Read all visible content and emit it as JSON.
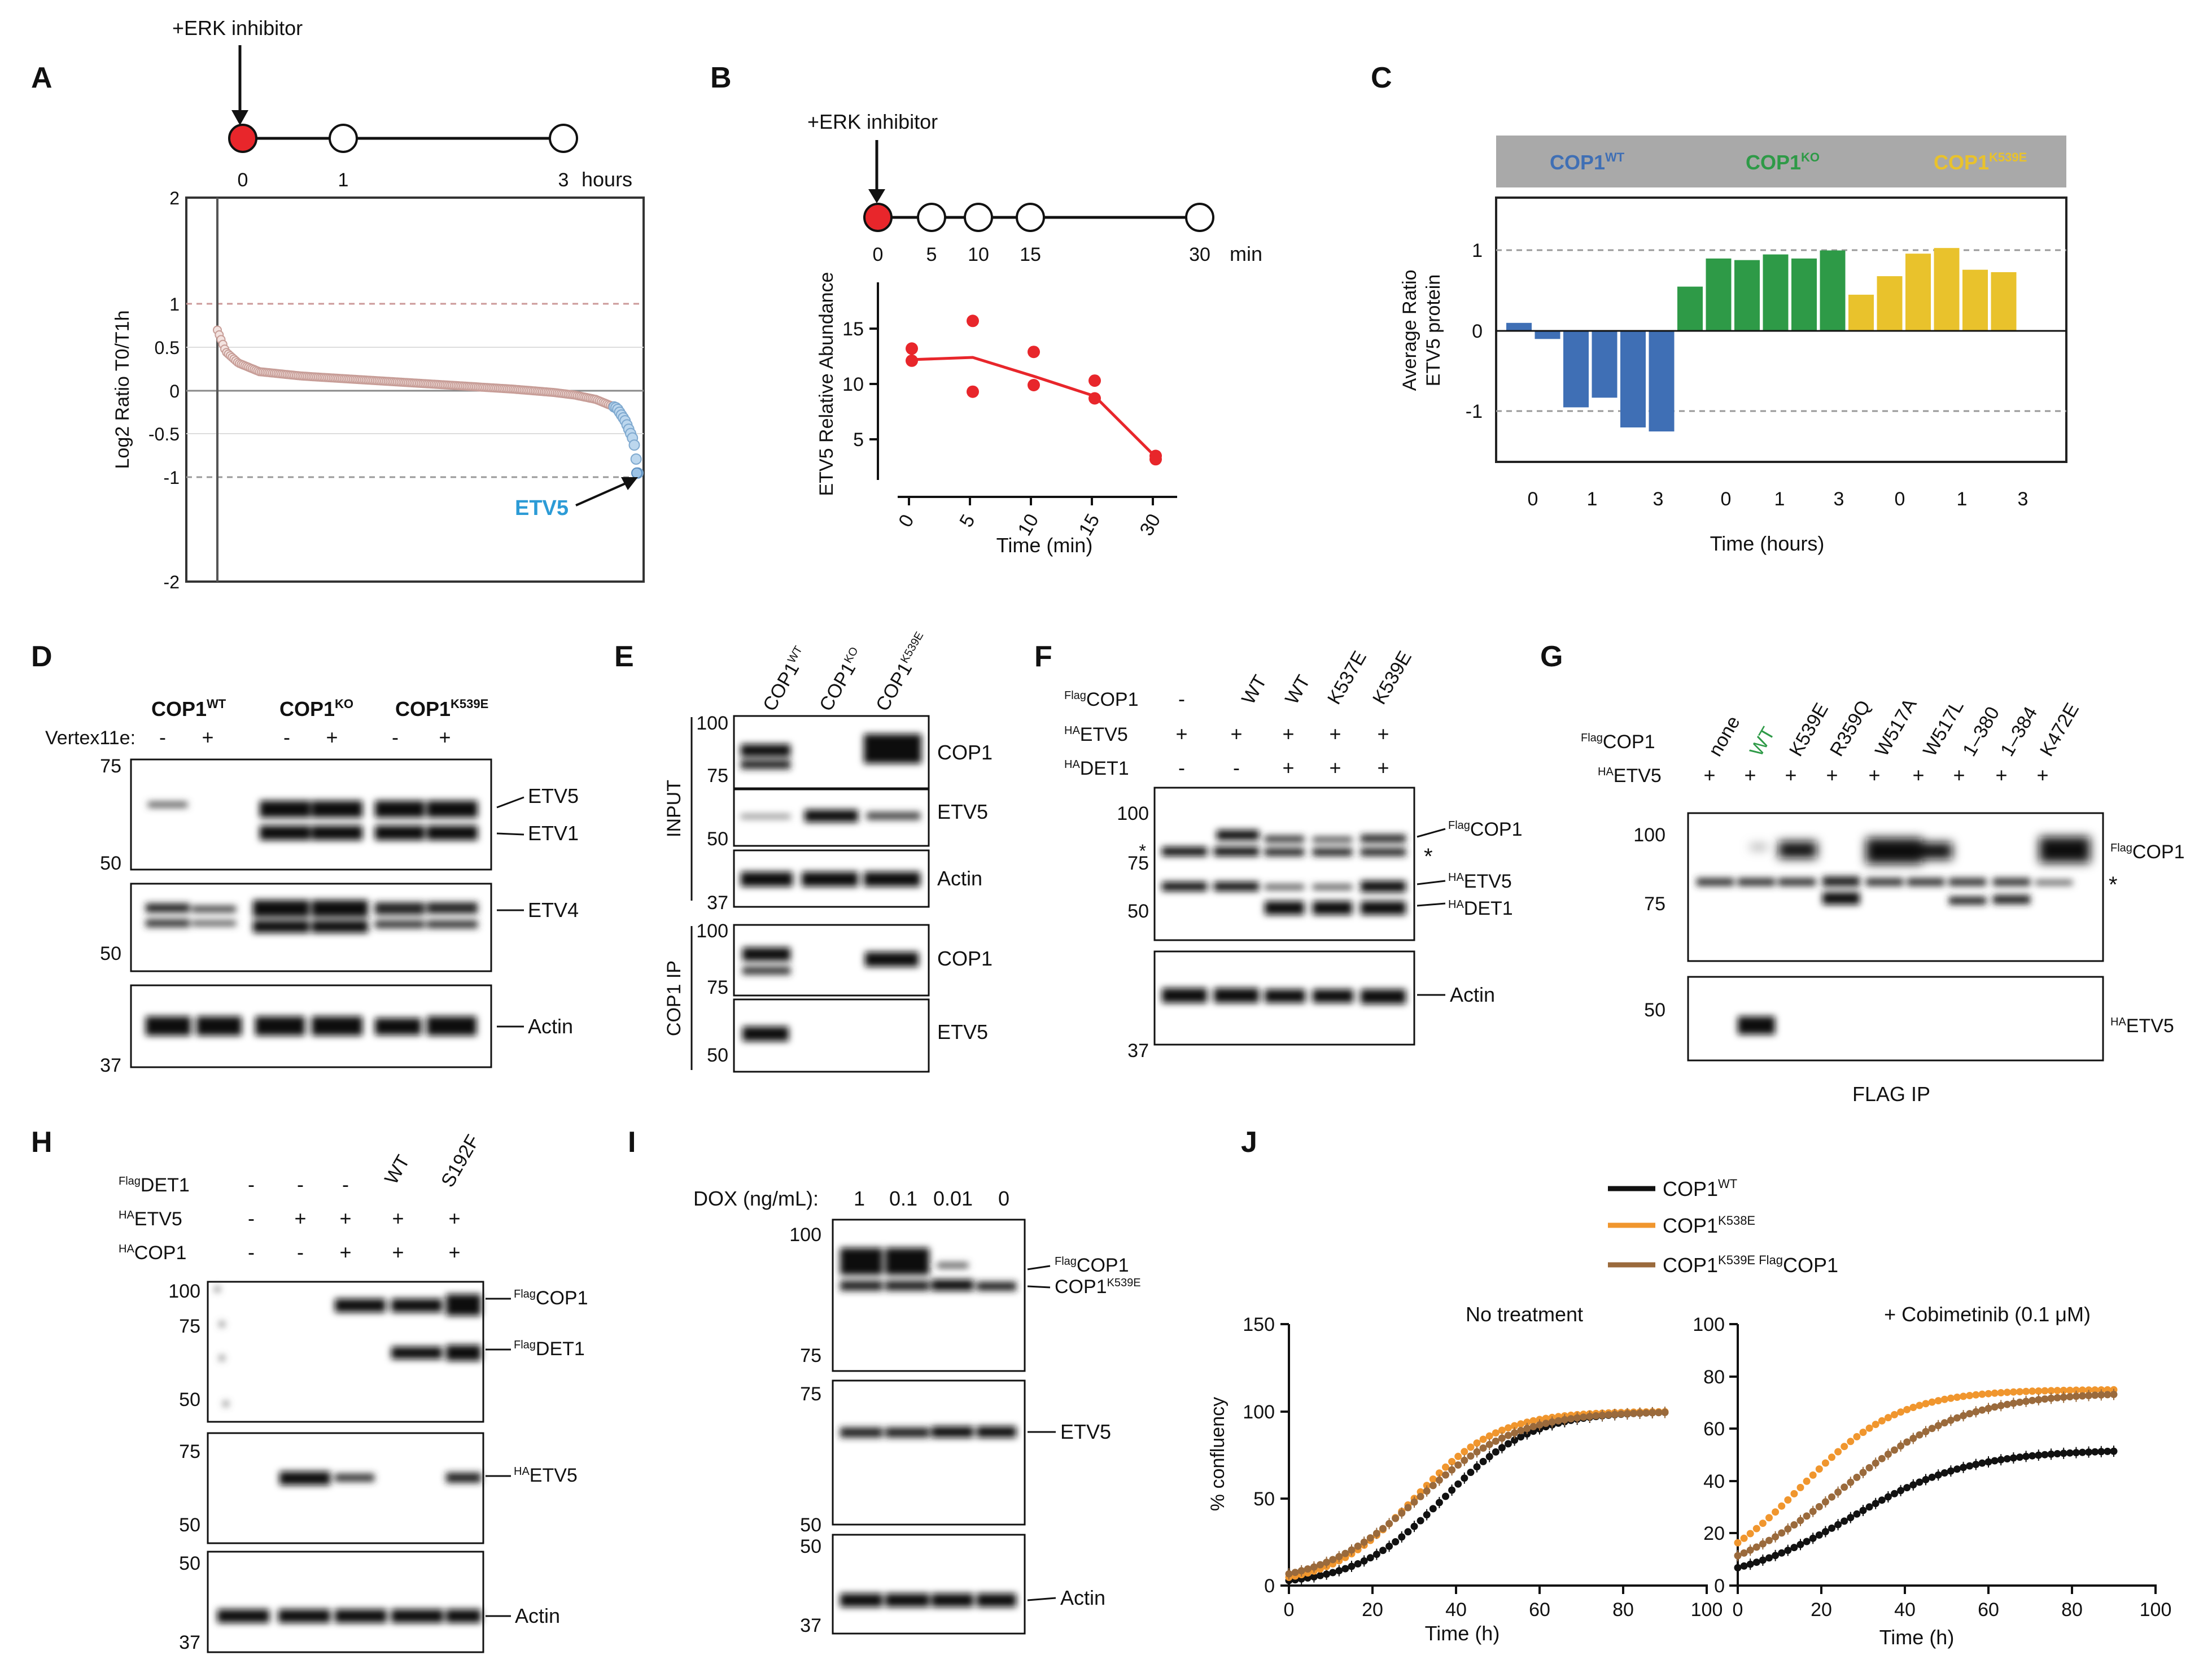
{
  "panels": {
    "A": "A",
    "B": "B",
    "C": "C",
    "D": "D",
    "E": "E",
    "F": "F",
    "G": "G",
    "H": "H",
    "I": "I",
    "J": "J"
  },
  "A": {
    "treatment": "+ERK inhibitor",
    "timepoints": [
      "0",
      "1",
      "3"
    ],
    "time_unit": "hours",
    "ylabel": "Log2 Ratio T0/T1h",
    "yticks": [
      "2",
      "1",
      "0.5",
      "0",
      "-0.5",
      "-1",
      "-2"
    ],
    "callout": "ETV5"
  },
  "B": {
    "treatment": "+ERK inhibitor",
    "timepoints": [
      "0",
      "5",
      "10",
      "15",
      "30"
    ],
    "time_unit": "min",
    "xticks": [
      "0",
      "5",
      "10",
      "15",
      "30"
    ],
    "yticks": [
      "15",
      "10",
      "5"
    ],
    "xlabel": "Time (min)",
    "ylabel": "ETV5 Relative Abundance"
  },
  "C": {
    "groups": [
      {
        "name": "COP1",
        "sup": "WT",
        "color": "#3f6fb5"
      },
      {
        "name": "COP1",
        "sup": "KO",
        "color": "#2e9a47"
      },
      {
        "name": "COP1",
        "sup": "K539E",
        "color": "#e9c22c"
      }
    ],
    "yticks": [
      "1",
      "0",
      "-1"
    ],
    "xticks": [
      "0",
      "1",
      "3",
      "0",
      "1",
      "3",
      "0",
      "1",
      "3"
    ],
    "xlabel": "Time (hours)",
    "ylabel1": "Average Ratio",
    "ylabel2": "ETV5 protein"
  },
  "D": {
    "lanes": [
      {
        "name": "COP1",
        "sup": "WT"
      },
      {
        "name": "COP1",
        "sup": "KO"
      },
      {
        "name": "COP1",
        "sup": "K539E"
      }
    ],
    "treatment": "Vertex11e:",
    "signs": [
      "-",
      "+",
      "-",
      "+",
      "-",
      "+"
    ],
    "mw1": [
      "75",
      "50"
    ],
    "mw2": [
      "50"
    ],
    "mw3": [
      "37"
    ],
    "labels": [
      "ETV5",
      "ETV1",
      "ETV4",
      "Actin"
    ]
  },
  "E": {
    "lanes": [
      {
        "name": "COP1",
        "sup": "WT"
      },
      {
        "name": "COP1",
        "sup": "KO"
      },
      {
        "name": "COP1",
        "sup": "K539E"
      }
    ],
    "section1": "INPUT",
    "section2": "COP1 IP",
    "mw_a": [
      "100",
      "75"
    ],
    "mw_b": [
      "50"
    ],
    "mw_c": [
      "37"
    ],
    "mw_d": [
      "100",
      "75"
    ],
    "mw_e": [
      "50"
    ],
    "labels": [
      "COP1",
      "ETV5",
      "Actin",
      "COP1",
      "ETV5"
    ]
  },
  "F": {
    "headers": [
      "WT",
      "WT",
      "K537E",
      "K539E"
    ],
    "rows": [
      {
        "sup": "Flag",
        "name": "COP1",
        "vals": [
          "-",
          "",
          "",
          "",
          ""
        ]
      },
      {
        "sup": "HA",
        "name": "ETV5",
        "vals": [
          "+",
          "+",
          "+",
          "+",
          "+"
        ]
      },
      {
        "sup": "HA",
        "name": "DET1",
        "vals": [
          "-",
          "-",
          "+",
          "+",
          "+"
        ]
      }
    ],
    "mw_top": [
      "100",
      "75",
      "50"
    ],
    "mw_bot": [
      "37"
    ],
    "labels": [
      {
        "sup": "Flag",
        "name": "COP1"
      },
      {
        "sup": "HA",
        "name": "ETV5"
      },
      {
        "sup": "HA",
        "name": "DET1"
      }
    ],
    "actin": "Actin",
    "asterisk": "*"
  },
  "G": {
    "headers": [
      "none",
      "WT",
      "K539E",
      "R359Q",
      "W517A",
      "W517L",
      "1–380",
      "1–384",
      "K472E"
    ],
    "wt_color": "#2e9a47",
    "rows": [
      {
        "sup": "Flag",
        "name": "COP1"
      },
      {
        "sup": "HA",
        "name": "ETV5"
      }
    ],
    "plus": "+",
    "mw_top": [
      "100",
      "75"
    ],
    "mw_bot": [
      "50"
    ],
    "labels": [
      {
        "sup": "Flag",
        "name": "COP1"
      },
      {
        "sup": "HA",
        "name": "ETV5"
      }
    ],
    "asterisk": "*",
    "footer": "FLAG IP"
  },
  "H": {
    "headers": [
      "WT",
      "S192F"
    ],
    "rows": [
      {
        "sup": "Flag",
        "name": "DET1",
        "vals": [
          "-",
          "-",
          "-",
          "",
          ""
        ]
      },
      {
        "sup": "HA",
        "name": "ETV5",
        "vals": [
          "-",
          "+",
          "+",
          "+",
          "+"
        ]
      },
      {
        "sup": "HA",
        "name": "COP1",
        "vals": [
          "-",
          "-",
          "+",
          "+",
          "+"
        ]
      }
    ],
    "mw1": [
      "100",
      "75",
      "50"
    ],
    "mw2": [
      "75",
      "50"
    ],
    "mw3": [
      "50",
      "37"
    ],
    "labels": [
      {
        "sup": "Flag",
        "name": "COP1"
      },
      {
        "sup": "Flag",
        "name": "DET1"
      },
      {
        "sup": "HA",
        "name": "ETV5"
      }
    ],
    "actin": "Actin"
  },
  "I": {
    "dox_label": "DOX (ng/mL):",
    "dox": [
      "1",
      "0.1",
      "0.01",
      "0"
    ],
    "mw1": [
      "100",
      "75"
    ],
    "mw2": [
      "75",
      "50"
    ],
    "mw3": [
      "50",
      "37"
    ],
    "labels": [
      {
        "sup": "Flag",
        "name": "COP1",
        "pre": true
      },
      {
        "sup": "K539E",
        "name": "COP1",
        "pre": false
      }
    ],
    "etv5": "ETV5",
    "actin": "Actin"
  },
  "J": {
    "legend": [
      {
        "name": "COP1",
        "sup": "WT",
        "color": "#111111"
      },
      {
        "name": "COP1",
        "sup": "K538E",
        "color": "#f0962e"
      },
      {
        "name": "COP1",
        "sup": "K539E Flag",
        "tail": "COP1",
        "color": "#9a6a3c"
      }
    ],
    "plot1_title": "No treatment",
    "plot2_title": "+ Cobimetinib (0.1 μM)",
    "ylabel": "% confluency",
    "xlabel": "Time (h)",
    "p1_yticks": [
      "150",
      "100",
      "50",
      "0"
    ],
    "p2_yticks": [
      "100",
      "80",
      "60",
      "40",
      "20",
      "0"
    ],
    "xticks": [
      "0",
      "20",
      "40",
      "60",
      "80",
      "100"
    ]
  },
  "chart_data": [
    {
      "panel": "A",
      "type": "scatter",
      "title": "",
      "xlabel": "",
      "ylabel": "Log2 Ratio T0/T1h",
      "ylim": [
        -2,
        2
      ],
      "reference_lines": [
        1,
        -1
      ],
      "highlight": {
        "label": "ETV5",
        "y": -0.95
      },
      "x": [
        0,
        0.02,
        0.05,
        0.1,
        0.2,
        0.3,
        0.4,
        0.5,
        0.6,
        0.7,
        0.8,
        0.85,
        0.9,
        0.95,
        0.97,
        0.99,
        1.0
      ],
      "y": [
        0.7,
        0.45,
        0.32,
        0.22,
        0.17,
        0.14,
        0.11,
        0.08,
        0.05,
        0.02,
        -0.02,
        -0.05,
        -0.1,
        -0.2,
        -0.35,
        -0.58,
        -0.95
      ]
    },
    {
      "panel": "B",
      "type": "line",
      "title": "",
      "xlabel": "Time (min)",
      "ylabel": "ETV5 Relative Abundance",
      "ylim": [
        0,
        20
      ],
      "categories": [
        "0",
        "5",
        "10",
        "15",
        "30"
      ],
      "series": [
        {
          "name": "mean",
          "values": [
            12.2,
            12.4,
            10.7,
            8.9,
            3.4
          ]
        }
      ],
      "points": [
        [
          0,
          13.2
        ],
        [
          0,
          12.1
        ],
        [
          5,
          15.7
        ],
        [
          5,
          9.3
        ],
        [
          10,
          12.9
        ],
        [
          10,
          9.9
        ],
        [
          15,
          10.3
        ],
        [
          15,
          8.7
        ],
        [
          30,
          3.5
        ],
        [
          30,
          3.2
        ]
      ]
    },
    {
      "panel": "C",
      "type": "bar",
      "title": "",
      "xlabel": "Time (hours)",
      "ylabel": "Average Ratio ETV5 protein",
      "ylim": [
        -1.6,
        1.6
      ],
      "series": [
        {
          "name": "COP1 WT",
          "values": [
            0.1,
            -0.1,
            -0.95,
            -0.83,
            -1.2,
            -1.25
          ]
        },
        {
          "name": "COP1 KO",
          "values": [
            0.55,
            0.9,
            0.88,
            0.95,
            0.9,
            1.0
          ]
        },
        {
          "name": "COP1 K539E",
          "values": [
            0.45,
            0.68,
            0.96,
            1.03,
            0.76,
            0.73
          ]
        }
      ]
    },
    {
      "panel": "J1",
      "type": "line",
      "title": "No treatment",
      "xlabel": "Time (h)",
      "ylabel": "% confluency",
      "ylim": [
        0,
        150
      ],
      "xlim": [
        0,
        100
      ],
      "series": [
        {
          "name": "COP1 WT",
          "K": 100,
          "r": 0.095,
          "t0": 37
        },
        {
          "name": "COP1 K538E",
          "K": 100,
          "r": 0.1,
          "t0": 30
        },
        {
          "name": "COP1 K539E Flag COP1",
          "K": 100,
          "r": 0.085,
          "t0": 31
        }
      ]
    },
    {
      "panel": "J2",
      "type": "line",
      "title": "+ Cobimetinib (0.1 μM)",
      "xlabel": "Time (h)",
      "ylabel": "% confluency",
      "ylim": [
        0,
        100
      ],
      "xlim": [
        0,
        100
      ],
      "series": [
        {
          "name": "COP1 WT",
          "K": 52,
          "r": 0.07,
          "t0": 27
        },
        {
          "name": "COP1 K538E",
          "K": 75,
          "r": 0.085,
          "t0": 15
        },
        {
          "name": "COP1 K539E Flag COP1",
          "K": 74,
          "r": 0.068,
          "t0": 25
        }
      ]
    }
  ]
}
